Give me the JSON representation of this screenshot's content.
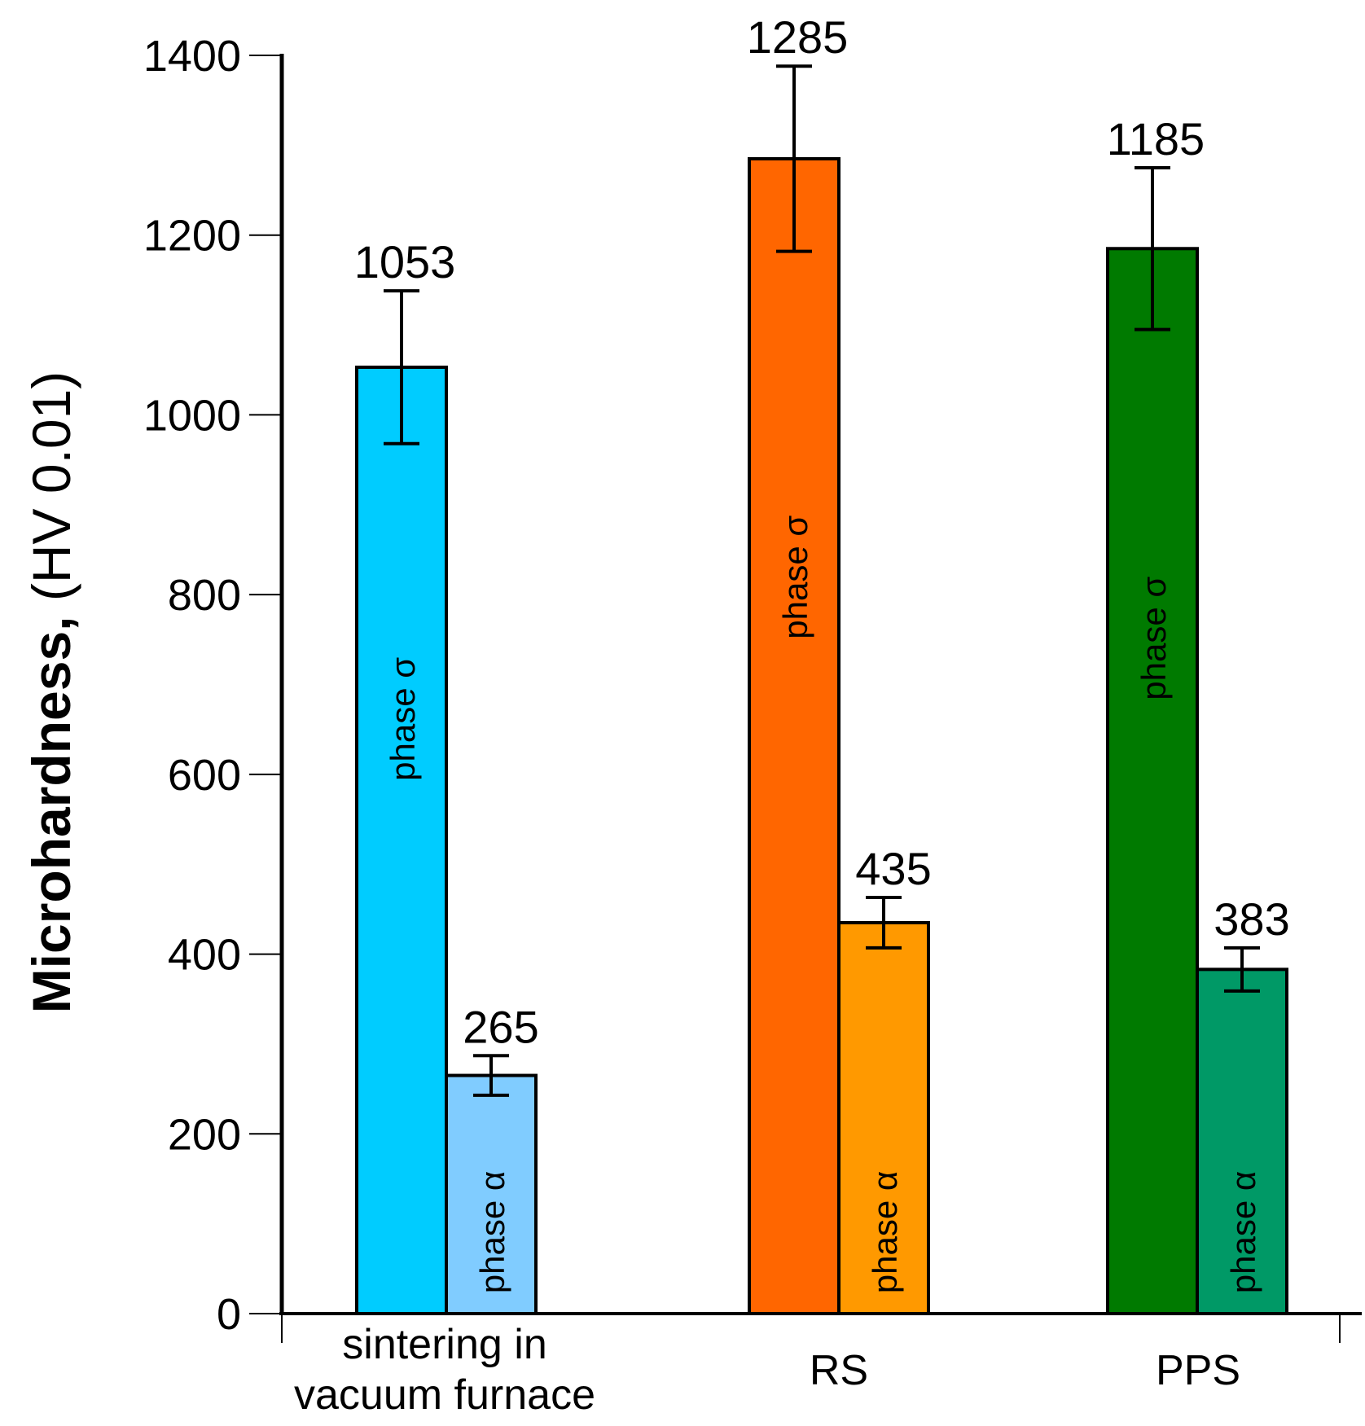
{
  "chart_data": {
    "type": "bar",
    "title": "",
    "xlabel": "",
    "ylabel": {
      "bold": "Microhardness,",
      "normal": " (HV 0.01)"
    },
    "ylim": [
      0,
      1400
    ],
    "yticks": [
      0,
      200,
      400,
      600,
      800,
      1000,
      1200,
      1400
    ],
    "categories": [
      [
        "sintering in",
        "vacuum furnace"
      ],
      [
        "RS"
      ],
      [
        "PPS"
      ]
    ],
    "series": [
      {
        "name": "phase σ",
        "values": [
          1053,
          1285,
          1185
        ],
        "errors": [
          85,
          103,
          90
        ],
        "colors": [
          "#00ccff",
          "#ff6600",
          "#007a00"
        ],
        "value_labels": [
          "1053",
          "1285",
          "1185"
        ]
      },
      {
        "name": "phase α",
        "values": [
          265,
          435,
          383
        ],
        "errors": [
          22,
          28,
          24
        ],
        "colors": [
          "#80ccff",
          "#ff9900",
          "#009966"
        ],
        "value_labels": [
          "265",
          "435",
          "383"
        ]
      }
    ],
    "grid": false,
    "legend": "none"
  }
}
